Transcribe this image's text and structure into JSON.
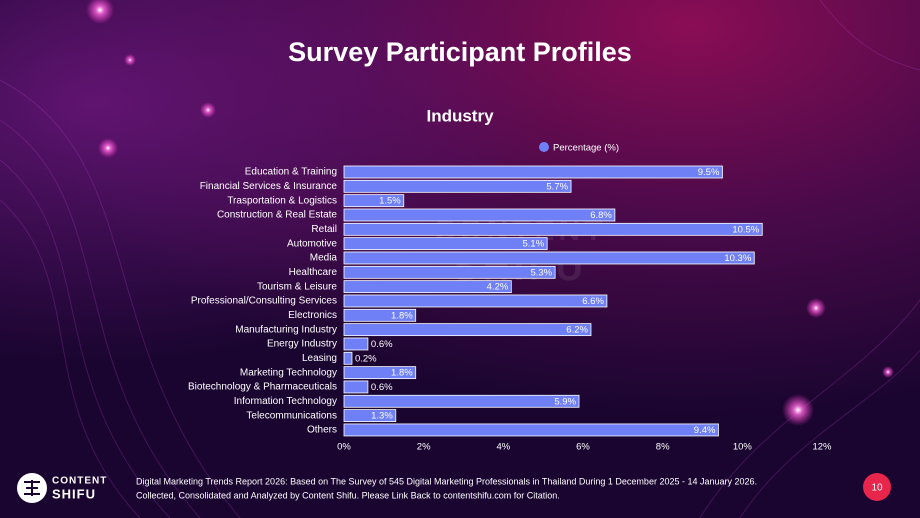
{
  "slide_title": "Survey Participant Profiles",
  "chart_data": {
    "type": "bar",
    "orientation": "horizontal",
    "title": "Industry",
    "categories": [
      "Education & Training",
      "Financial Services & Insurance",
      "Trasportation & Logistics",
      "Construction & Real Estate",
      "Retail",
      "Automotive",
      "Media",
      "Healthcare",
      "Tourism & Leisure",
      "Professional/Consulting Services",
      "Electronics",
      "Manufacturing Industry",
      "Energy Industry",
      "Leasing",
      "Marketing Technology",
      "Biotechnology & Pharmaceuticals",
      "Information Technology",
      "Telecommunications",
      "Others"
    ],
    "series": [
      {
        "name": "Percentage (%)",
        "color": "#6f7ff6",
        "values": [
          9.5,
          5.7,
          1.5,
          6.8,
          10.5,
          5.1,
          10.3,
          5.3,
          4.2,
          6.6,
          1.8,
          6.2,
          0.6,
          0.2,
          1.8,
          0.6,
          5.9,
          1.3,
          9.4
        ],
        "value_labels": [
          "9.5%",
          "5.7%",
          "1.5%",
          "6.8%",
          "10.5%",
          "5.1%",
          "10.3%",
          "5.3%",
          "4.2%",
          "6.6%",
          "1.8%",
          "6.2%",
          "0.6%",
          "0.2%",
          "1.8%",
          "0.6%",
          "5.9%",
          "1.3%",
          "9.4%"
        ]
      }
    ],
    "xlim": [
      0,
      12
    ],
    "xticks": [
      {
        "value": 0,
        "label": "0%"
      },
      {
        "value": 2,
        "label": "2%"
      },
      {
        "value": 4,
        "label": "4%"
      },
      {
        "value": 6,
        "label": "6%"
      },
      {
        "value": 8,
        "label": "8%"
      },
      {
        "value": 10,
        "label": "10%"
      },
      {
        "value": 12,
        "label": "12%"
      }
    ],
    "legend": "top"
  },
  "logo": {
    "line1": "CONTENT",
    "line2": "SHIFU"
  },
  "footnote": [
    "Digital Marketing Trends Report 2026: Based on The Survey of 545 Digital Marketing Professionals in Thailand During 1 December 2025 - 14 January 2026.",
    "Collected, Consolidated and Analyzed by Content Shifu. Please Link Back to contentshifu.com for Citation."
  ],
  "page_number": "10"
}
